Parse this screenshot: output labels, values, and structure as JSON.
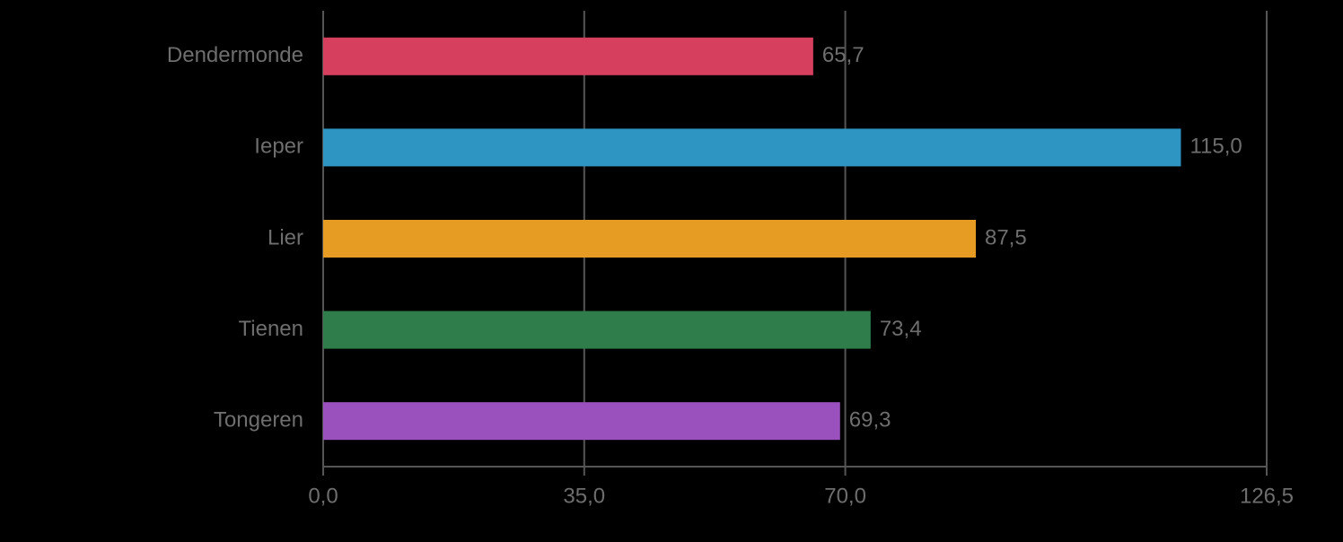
{
  "chart_data": {
    "type": "hbar",
    "categories": [
      "Dendermonde",
      "Ieper",
      "Lier",
      "Tienen",
      "Tongeren"
    ],
    "values": [
      65.7,
      115.0,
      87.5,
      73.4,
      69.3
    ],
    "value_labels": [
      "65,7",
      "115,0",
      "87,5",
      "73,4",
      "69,3"
    ],
    "colors": [
      "#d63f5e",
      "#2e94c1",
      "#e69c22",
      "#2e7d4a",
      "#9b51bd"
    ],
    "xlim": [
      0,
      126.5
    ],
    "xticks": [
      {
        "value": 0,
        "label": "0,0"
      },
      {
        "value": 35,
        "label": "35,0"
      },
      {
        "value": 70,
        "label": "70,0"
      },
      {
        "value": 126.5,
        "label": "126,5"
      }
    ],
    "grid": true
  }
}
